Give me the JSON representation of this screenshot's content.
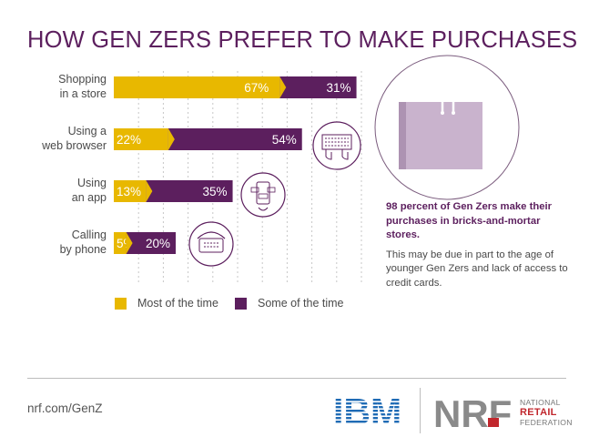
{
  "title": "HOW GEN ZERS PREFER TO MAKE PURCHASES",
  "chart_data": {
    "type": "bar",
    "orientation": "horizontal",
    "stacked": true,
    "categories": [
      "Shopping\nin a store",
      "Using a\nweb browser",
      "Using\nan app",
      "Calling\nby phone"
    ],
    "series": [
      {
        "name": "Most of the time",
        "values": [
          67,
          22,
          13,
          5
        ],
        "color": "#e8b800"
      },
      {
        "name": "Some of the time",
        "values": [
          31,
          54,
          35,
          20
        ],
        "color": "#5c1f5e"
      }
    ],
    "value_labels": [
      [
        "67%",
        "22%",
        "13%",
        "5%"
      ],
      [
        "31%",
        "54%",
        "35%",
        "20%"
      ]
    ],
    "xlim": [
      0,
      100
    ],
    "grid": true,
    "legend_position": "bottom"
  },
  "icons": [
    "shopping-bag-icon",
    "keyboard-hands-icon",
    "phone-app-icon",
    "telephone-icon"
  ],
  "callout": {
    "heading": "98 percent of Gen Zers make their purchases in bricks-and-mortar stores.",
    "body": "This may be due in part to the age of younger Gen Zers and lack of access to credit cards."
  },
  "footer": {
    "url": "nrf.com/GenZ",
    "ibm_logo": "IBM",
    "nrf_logo": "NRF",
    "nrf_line1": "NATIONAL",
    "nrf_line2": "RETAIL",
    "nrf_line3": "FEDERATION"
  },
  "colors": {
    "gold": "#e8b800",
    "purple": "#5c1f5e",
    "lavender": "#c9b3cd"
  }
}
